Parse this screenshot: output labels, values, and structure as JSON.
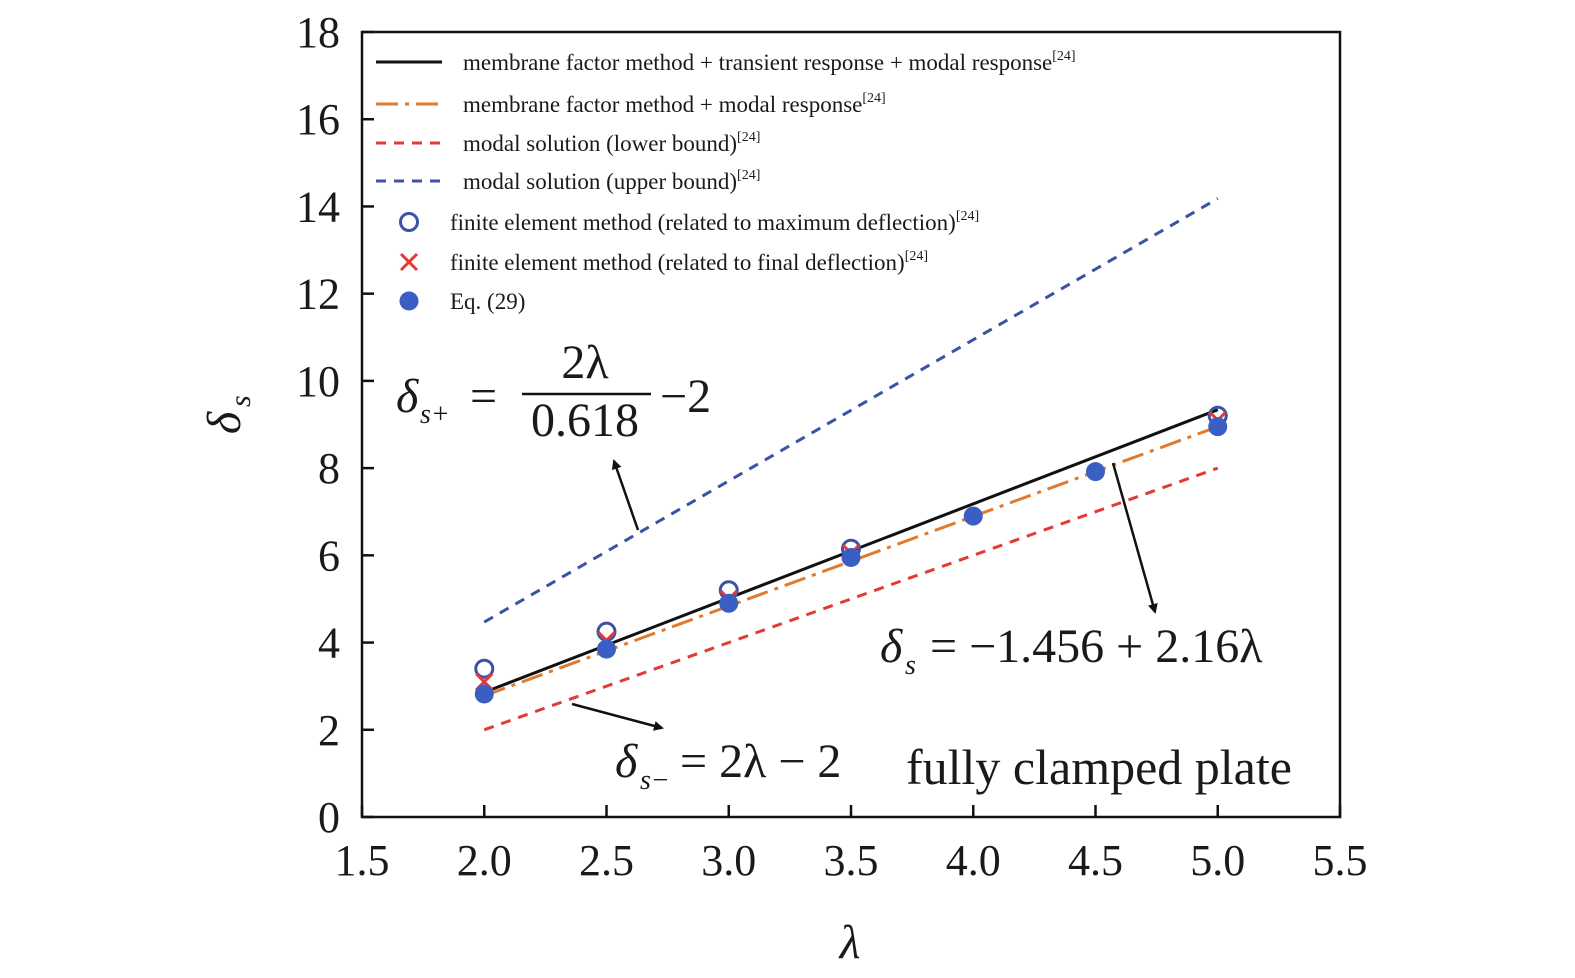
{
  "chart_data": {
    "type": "line",
    "xlabel": "λ",
    "ylabel": {
      "main": "δ",
      "sub": "s"
    },
    "xlim": [
      1.5,
      5.5
    ],
    "ylim": [
      0,
      18
    ],
    "xticks": [
      "1.5",
      "2.0",
      "2.5",
      "3.0",
      "3.5",
      "4.0",
      "4.5",
      "5.0",
      "5.5"
    ],
    "yticks": [
      "0",
      "2",
      "4",
      "6",
      "8",
      "10",
      "12",
      "14",
      "16",
      "18"
    ],
    "grid": false,
    "legend_position": "top-left",
    "series": [
      {
        "name": "membrane factor method + transient response + modal response",
        "ref": "[24]",
        "kind": "line",
        "style": "solid",
        "color": "#111111",
        "x": [
          2.0,
          5.0
        ],
        "y": [
          2.86,
          9.34
        ]
      },
      {
        "name": "membrane factor method + modal response",
        "ref": "[24]",
        "kind": "line",
        "style": "dashdot",
        "color": "#e07a2e",
        "x": [
          2.0,
          5.0
        ],
        "y": [
          2.78,
          8.95
        ]
      },
      {
        "name": "modal solution (lower bound)",
        "ref": "[24]",
        "kind": "line",
        "style": "dashed",
        "color": "#e53935",
        "x": [
          2.0,
          5.0
        ],
        "y": [
          2.0,
          8.0
        ]
      },
      {
        "name": "modal solution (upper bound)",
        "ref": "[24]",
        "kind": "line",
        "style": "dashed",
        "color": "#3a53a4",
        "x": [
          2.0,
          5.0
        ],
        "y": [
          4.47,
          14.18
        ]
      },
      {
        "name": "finite element method (related to maximum deflection)",
        "ref": "[24]",
        "kind": "open-circle",
        "color": "#3a53a4",
        "x": [
          2.0,
          2.5,
          3.0,
          3.5,
          5.0
        ],
        "y": [
          3.4,
          4.25,
          5.2,
          6.15,
          9.2
        ]
      },
      {
        "name": "finite element method (related to final deflection)",
        "ref": "[24]",
        "kind": "cross",
        "color": "#e53935",
        "x": [
          2.0,
          2.5,
          3.0,
          3.5,
          5.0
        ],
        "y": [
          3.1,
          4.05,
          5.0,
          6.05,
          9.1
        ]
      },
      {
        "name": "Eq. (29)",
        "ref": "",
        "kind": "filled-circle",
        "color": "#3a5fc4",
        "x": [
          2.0,
          2.5,
          3.0,
          3.5,
          4.0,
          4.5,
          5.0
        ],
        "y": [
          2.82,
          3.85,
          4.9,
          5.95,
          6.9,
          7.92,
          8.95
        ]
      }
    ],
    "annotations": {
      "upper": {
        "lhs": "δ",
        "lhs_sub": "s+",
        "equals": "=",
        "numerator": "2λ",
        "denominator": "0.618",
        "tail": "−2"
      },
      "fit": {
        "lhs": "δ",
        "lhs_sub": "s",
        "rhs": "= −1.456 + 2.16λ"
      },
      "lower": {
        "lhs": "δ",
        "lhs_sub": "s−",
        "rhs": "= 2λ − 2"
      },
      "note": "fully clamped plate"
    }
  }
}
